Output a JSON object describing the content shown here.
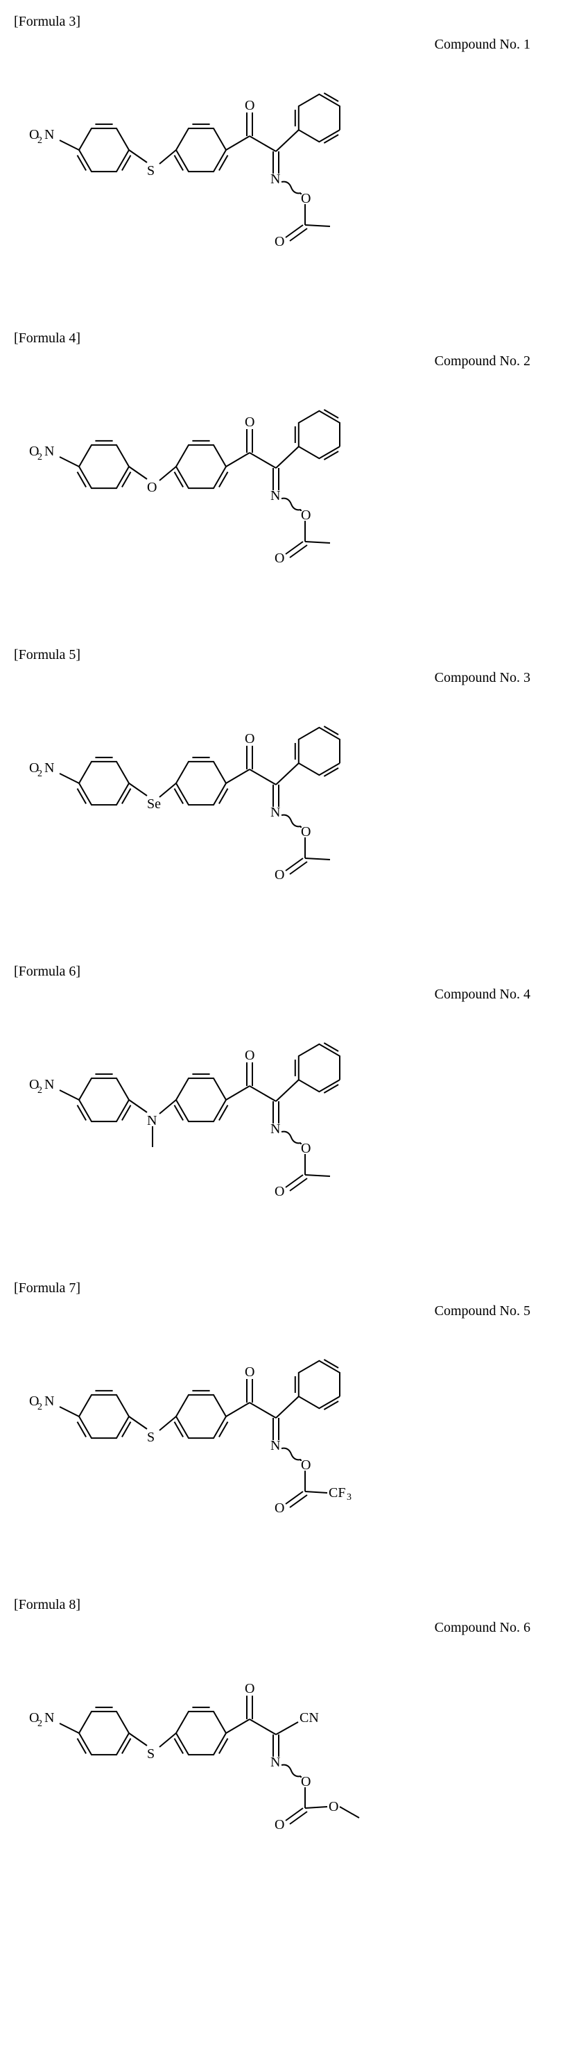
{
  "compounds": [
    {
      "formula_label": "[Formula 3]",
      "compound_label": "Compound No. 1",
      "bridge": "S",
      "left_group": "O2N",
      "right_group": "phenyl",
      "oxime_group": "acetyl",
      "cf3": false,
      "cn": false,
      "n_methyl": false,
      "oco_ome": false
    },
    {
      "formula_label": "[Formula 4]",
      "compound_label": "Compound No. 2",
      "bridge": "O",
      "left_group": "O2N",
      "right_group": "phenyl",
      "oxime_group": "acetyl",
      "cf3": false,
      "cn": false,
      "n_methyl": false,
      "oco_ome": false
    },
    {
      "formula_label": "[Formula 5]",
      "compound_label": "Compound No. 3",
      "bridge": "Se",
      "left_group": "O2N",
      "right_group": "phenyl",
      "oxime_group": "acetyl",
      "cf3": false,
      "cn": false,
      "n_methyl": false,
      "oco_ome": false
    },
    {
      "formula_label": "[Formula 6]",
      "compound_label": "Compound No. 4",
      "bridge": "N",
      "left_group": "O2N",
      "right_group": "phenyl",
      "oxime_group": "acetyl",
      "cf3": false,
      "cn": false,
      "n_methyl": true,
      "oco_ome": false
    },
    {
      "formula_label": "[Formula 7]",
      "compound_label": "Compound No. 5",
      "bridge": "S",
      "left_group": "O2N",
      "right_group": "phenyl",
      "oxime_group": "acetyl",
      "cf3": true,
      "cn": false,
      "n_methyl": false,
      "oco_ome": false
    },
    {
      "formula_label": "[Formula 8]",
      "compound_label": "Compound No. 6",
      "bridge": "S",
      "left_group": "O2N",
      "right_group": "CN",
      "oxime_group": "acetyl",
      "cf3": false,
      "cn": true,
      "n_methyl": false,
      "oco_ome": true
    }
  ],
  "style": {
    "bond_color": "#000000",
    "bond_width": 2,
    "font_family": "Times New Roman",
    "font_size_label": 20,
    "font_size_atom": 20,
    "font_size_sub": 14,
    "background": "#ffffff"
  }
}
